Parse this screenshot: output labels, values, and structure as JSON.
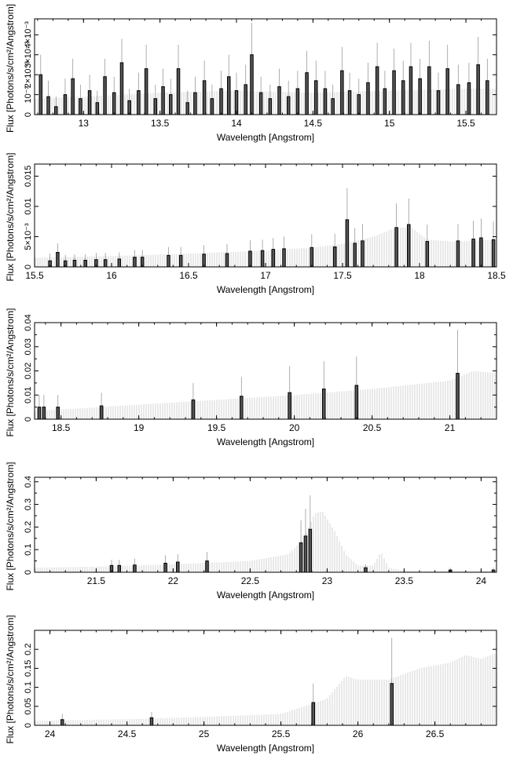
{
  "chart_data": [
    {
      "type": "bar",
      "xlabel": "Wavelength [Angstrom]",
      "ylabel": "Flux [Photons/s/cm²/Angstrom]",
      "xlim": [
        12.68,
        15.7
      ],
      "ylim": [
        0,
        0.0048
      ],
      "xticks": [
        13,
        13.5,
        14,
        14.5,
        15,
        15.5
      ],
      "xtick_labels": [
        "13",
        "13.5",
        "14",
        "14.5",
        "15",
        "15.5"
      ],
      "yticks": [
        0,
        0.001,
        0.002,
        0.003,
        0.004
      ],
      "ytick_labels": [
        "0",
        "10⁻³",
        "2×10⁻³",
        "3×10⁻³",
        "4×10⁻³"
      ],
      "model": {
        "x": [
          12.68,
          13.0,
          13.5,
          14.0,
          14.5,
          15.0,
          15.5,
          15.7
        ],
        "y": [
          0.0008,
          0.0009,
          0.0011,
          0.0012,
          0.0011,
          0.0012,
          0.0013,
          0.0013
        ]
      },
      "data": [
        {
          "x": 12.72,
          "y": 0.002,
          "err": 0.001
        },
        {
          "x": 12.77,
          "y": 0.0009,
          "err": 0.0008
        },
        {
          "x": 12.82,
          "y": 0.0004,
          "err": 0.0005
        },
        {
          "x": 12.88,
          "y": 0.001,
          "err": 0.0008
        },
        {
          "x": 12.93,
          "y": 0.0018,
          "err": 0.001
        },
        {
          "x": 12.98,
          "y": 0.0008,
          "err": 0.0007
        },
        {
          "x": 13.04,
          "y": 0.0012,
          "err": 0.0008
        },
        {
          "x": 13.09,
          "y": 0.0006,
          "err": 0.0006
        },
        {
          "x": 13.14,
          "y": 0.0019,
          "err": 0.0009
        },
        {
          "x": 13.2,
          "y": 0.0011,
          "err": 0.0008
        },
        {
          "x": 13.25,
          "y": 0.0026,
          "err": 0.0012
        },
        {
          "x": 13.3,
          "y": 0.0007,
          "err": 0.0006
        },
        {
          "x": 13.36,
          "y": 0.0012,
          "err": 0.0009
        },
        {
          "x": 13.41,
          "y": 0.0023,
          "err": 0.0012
        },
        {
          "x": 13.47,
          "y": 0.0008,
          "err": 0.0007
        },
        {
          "x": 13.52,
          "y": 0.0014,
          "err": 0.0009
        },
        {
          "x": 13.57,
          "y": 0.001,
          "err": 0.0008
        },
        {
          "x": 13.62,
          "y": 0.0023,
          "err": 0.0012
        },
        {
          "x": 13.68,
          "y": 0.0006,
          "err": 0.0006
        },
        {
          "x": 13.73,
          "y": 0.0011,
          "err": 0.0008
        },
        {
          "x": 13.79,
          "y": 0.0017,
          "err": 0.001
        },
        {
          "x": 13.84,
          "y": 0.0008,
          "err": 0.0007
        },
        {
          "x": 13.9,
          "y": 0.0013,
          "err": 0.0009
        },
        {
          "x": 13.95,
          "y": 0.0019,
          "err": 0.0011
        },
        {
          "x": 14.0,
          "y": 0.0012,
          "err": 0.0009
        },
        {
          "x": 14.06,
          "y": 0.0015,
          "err": 0.001
        },
        {
          "x": 14.1,
          "y": 0.003,
          "err": 0.0016
        },
        {
          "x": 14.16,
          "y": 0.0011,
          "err": 0.0008
        },
        {
          "x": 14.22,
          "y": 0.0008,
          "err": 0.0007
        },
        {
          "x": 14.28,
          "y": 0.0014,
          "err": 0.0009
        },
        {
          "x": 14.34,
          "y": 0.0009,
          "err": 0.0008
        },
        {
          "x": 14.4,
          "y": 0.0013,
          "err": 0.0009
        },
        {
          "x": 14.46,
          "y": 0.0021,
          "err": 0.0011
        },
        {
          "x": 14.52,
          "y": 0.0017,
          "err": 0.001
        },
        {
          "x": 14.58,
          "y": 0.0013,
          "err": 0.0009
        },
        {
          "x": 14.63,
          "y": 0.0008,
          "err": 0.0007
        },
        {
          "x": 14.69,
          "y": 0.0022,
          "err": 0.0012
        },
        {
          "x": 14.74,
          "y": 0.0012,
          "err": 0.0009
        },
        {
          "x": 14.8,
          "y": 0.001,
          "err": 0.0008
        },
        {
          "x": 14.86,
          "y": 0.0016,
          "err": 0.001
        },
        {
          "x": 14.92,
          "y": 0.0024,
          "err": 0.0012
        },
        {
          "x": 14.97,
          "y": 0.0013,
          "err": 0.0009
        },
        {
          "x": 15.03,
          "y": 0.0022,
          "err": 0.0011
        },
        {
          "x": 15.09,
          "y": 0.0017,
          "err": 0.001
        },
        {
          "x": 15.14,
          "y": 0.0024,
          "err": 0.0012
        },
        {
          "x": 15.2,
          "y": 0.0018,
          "err": 0.001
        },
        {
          "x": 15.26,
          "y": 0.0024,
          "err": 0.0013
        },
        {
          "x": 15.32,
          "y": 0.0012,
          "err": 0.0009
        },
        {
          "x": 15.38,
          "y": 0.0023,
          "err": 0.0012
        },
        {
          "x": 15.45,
          "y": 0.0015,
          "err": 0.001
        },
        {
          "x": 15.52,
          "y": 0.0016,
          "err": 0.001
        },
        {
          "x": 15.58,
          "y": 0.0025,
          "err": 0.0014
        },
        {
          "x": 15.64,
          "y": 0.0017,
          "err": 0.0011
        }
      ]
    },
    {
      "type": "bar",
      "xlabel": "Wavelength [Angstrom]",
      "ylabel": "Flux [Photons/s/cm²/Angstrom]",
      "xlim": [
        15.5,
        18.5
      ],
      "ylim": [
        0,
        0.017
      ],
      "xticks": [
        15.5,
        16,
        16.5,
        17,
        17.5,
        18,
        18.5
      ],
      "xtick_labels": [
        "15.5",
        "16",
        "16.5",
        "17",
        "17.5",
        "18",
        "18.5"
      ],
      "yticks": [
        0,
        0.005,
        0.01,
        0.015
      ],
      "ytick_labels": [
        "0",
        "5×10⁻³",
        "0.01",
        "0.015"
      ],
      "model": {
        "x": [
          15.5,
          16.0,
          16.5,
          17.0,
          17.3,
          17.5,
          17.7,
          17.85,
          17.95,
          18.05,
          18.2,
          18.5
        ],
        "y": [
          0.0015,
          0.0018,
          0.0022,
          0.0027,
          0.0032,
          0.0038,
          0.005,
          0.0065,
          0.0065,
          0.0045,
          0.0042,
          0.0045
        ]
      },
      "data": [
        {
          "x": 15.6,
          "y": 0.001,
          "err": 0.0012
        },
        {
          "x": 15.65,
          "y": 0.0024,
          "err": 0.0015
        },
        {
          "x": 15.7,
          "y": 0.001,
          "err": 0.001
        },
        {
          "x": 15.76,
          "y": 0.0011,
          "err": 0.001
        },
        {
          "x": 15.83,
          "y": 0.0011,
          "err": 0.001
        },
        {
          "x": 15.9,
          "y": 0.0012,
          "err": 0.0011
        },
        {
          "x": 15.96,
          "y": 0.0012,
          "err": 0.0011
        },
        {
          "x": 16.05,
          "y": 0.0013,
          "err": 0.0011
        },
        {
          "x": 16.15,
          "y": 0.0016,
          "err": 0.0012
        },
        {
          "x": 16.2,
          "y": 0.0016,
          "err": 0.0012
        },
        {
          "x": 16.37,
          "y": 0.0019,
          "err": 0.0014
        },
        {
          "x": 16.45,
          "y": 0.0019,
          "err": 0.0014
        },
        {
          "x": 16.6,
          "y": 0.0021,
          "err": 0.0015
        },
        {
          "x": 16.75,
          "y": 0.0022,
          "err": 0.0016
        },
        {
          "x": 16.9,
          "y": 0.0026,
          "err": 0.0018
        },
        {
          "x": 16.98,
          "y": 0.0027,
          "err": 0.0018
        },
        {
          "x": 17.05,
          "y": 0.0029,
          "err": 0.0019
        },
        {
          "x": 17.12,
          "y": 0.003,
          "err": 0.002
        },
        {
          "x": 17.3,
          "y": 0.0032,
          "err": 0.0022
        },
        {
          "x": 17.45,
          "y": 0.0033,
          "err": 0.0022
        },
        {
          "x": 17.53,
          "y": 0.0078,
          "err": 0.0052
        },
        {
          "x": 17.58,
          "y": 0.0039,
          "err": 0.0025
        },
        {
          "x": 17.63,
          "y": 0.0043,
          "err": 0.0028
        },
        {
          "x": 17.85,
          "y": 0.0065,
          "err": 0.004
        },
        {
          "x": 17.93,
          "y": 0.007,
          "err": 0.0043
        },
        {
          "x": 18.05,
          "y": 0.0042,
          "err": 0.0028
        },
        {
          "x": 18.25,
          "y": 0.0043,
          "err": 0.0028
        },
        {
          "x": 18.35,
          "y": 0.0046,
          "err": 0.003
        },
        {
          "x": 18.4,
          "y": 0.0048,
          "err": 0.0032
        },
        {
          "x": 18.48,
          "y": 0.0045,
          "err": 0.003
        }
      ]
    },
    {
      "type": "bar",
      "xlabel": "Wavelength [Angstrom]",
      "ylabel": "Flux [Photons/s/cm²/Angstrom]",
      "xlim": [
        18.33,
        21.3
      ],
      "ylim": [
        0,
        0.04
      ],
      "xticks": [
        18.5,
        19,
        19.5,
        20,
        20.5,
        21
      ],
      "xtick_labels": [
        "18.5",
        "19",
        "19.5",
        "20",
        "20.5",
        "21"
      ],
      "yticks": [
        0,
        0.005,
        0.01,
        0.015,
        0.02,
        0.025,
        0.03,
        0.035,
        0.04
      ],
      "ytick_labels": [
        "0",
        "",
        "0.01",
        "",
        "0.02",
        "",
        "0.03",
        "",
        "0.04"
      ],
      "model": {
        "x": [
          18.33,
          18.5,
          19.0,
          19.5,
          20.0,
          20.5,
          21.0,
          21.15,
          21.3
        ],
        "y": [
          0.0035,
          0.004,
          0.006,
          0.008,
          0.01,
          0.0125,
          0.016,
          0.02,
          0.019
        ]
      },
      "data": [
        {
          "x": 18.36,
          "y": 0.005,
          "err": 0.005
        },
        {
          "x": 18.39,
          "y": 0.005,
          "err": 0.005
        },
        {
          "x": 18.48,
          "y": 0.005,
          "err": 0.005
        },
        {
          "x": 18.76,
          "y": 0.0055,
          "err": 0.0055
        },
        {
          "x": 19.35,
          "y": 0.008,
          "err": 0.007
        },
        {
          "x": 19.66,
          "y": 0.0095,
          "err": 0.008
        },
        {
          "x": 19.97,
          "y": 0.011,
          "err": 0.011
        },
        {
          "x": 20.19,
          "y": 0.0125,
          "err": 0.0115
        },
        {
          "x": 20.4,
          "y": 0.014,
          "err": 0.012
        },
        {
          "x": 21.05,
          "y": 0.019,
          "err": 0.018
        }
      ]
    },
    {
      "type": "bar",
      "xlabel": "Wavelength [Angstrom]",
      "ylabel": "Flux [Photons/s/cm²/Angstrom]",
      "xlim": [
        21.1,
        24.1
      ],
      "ylim": [
        0,
        0.42
      ],
      "xticks": [
        21.5,
        22,
        22.5,
        23,
        23.5,
        24
      ],
      "xtick_labels": [
        "21.5",
        "22",
        "22.5",
        "23",
        "23.5",
        "24"
      ],
      "yticks": [
        0,
        0.05,
        0.1,
        0.15,
        0.2,
        0.25,
        0.3,
        0.35,
        0.4
      ],
      "ytick_labels": [
        "0",
        "",
        "0.1",
        "",
        "0.2",
        "",
        "0.3",
        "",
        "0.4"
      ],
      "model": {
        "x": [
          21.1,
          21.5,
          22.0,
          22.5,
          22.75,
          22.85,
          22.92,
          22.97,
          23.05,
          23.12,
          23.2,
          23.3,
          23.35,
          23.4,
          23.5,
          24.0,
          24.1
        ],
        "y": [
          0.02,
          0.025,
          0.035,
          0.05,
          0.08,
          0.15,
          0.26,
          0.27,
          0.18,
          0.08,
          0.03,
          0.03,
          0.09,
          0.02,
          0.005,
          0.005,
          0.005
        ]
      },
      "data": [
        {
          "x": 21.6,
          "y": 0.03,
          "err": 0.025
        },
        {
          "x": 21.65,
          "y": 0.03,
          "err": 0.025
        },
        {
          "x": 21.75,
          "y": 0.032,
          "err": 0.028
        },
        {
          "x": 21.95,
          "y": 0.04,
          "err": 0.035
        },
        {
          "x": 22.03,
          "y": 0.045,
          "err": 0.035
        },
        {
          "x": 22.22,
          "y": 0.05,
          "err": 0.04
        },
        {
          "x": 22.83,
          "y": 0.13,
          "err": 0.1
        },
        {
          "x": 22.86,
          "y": 0.16,
          "err": 0.12
        },
        {
          "x": 22.89,
          "y": 0.19,
          "err": 0.15
        },
        {
          "x": 23.25,
          "y": 0.02,
          "err": 0.015
        },
        {
          "x": 23.8,
          "y": 0.01,
          "err": 0.01
        },
        {
          "x": 24.08,
          "y": 0.01,
          "err": 0.01
        }
      ]
    },
    {
      "type": "bar",
      "xlabel": "Wavelength [Angstrom]",
      "ylabel": "Flux [Photons/s/cm²/Angstrom]",
      "xlim": [
        23.9,
        26.9
      ],
      "ylim": [
        0,
        0.25
      ],
      "xticks": [
        24,
        24.5,
        25,
        25.5,
        26,
        26.5
      ],
      "xtick_labels": [
        "24",
        "24.5",
        "25",
        "25.5",
        "26",
        "26.5"
      ],
      "yticks": [
        0,
        0.05,
        0.1,
        0.15,
        0.2
      ],
      "ytick_labels": [
        "0",
        "0.05",
        "0.1",
        "0.15",
        "0.2"
      ],
      "model": {
        "x": [
          23.9,
          24.5,
          25.0,
          25.5,
          25.8,
          25.92,
          26.0,
          26.2,
          26.4,
          26.6,
          26.7,
          26.8,
          26.9
        ],
        "y": [
          0.012,
          0.016,
          0.022,
          0.03,
          0.07,
          0.13,
          0.12,
          0.12,
          0.15,
          0.165,
          0.185,
          0.175,
          0.19
        ]
      },
      "data": [
        {
          "x": 24.08,
          "y": 0.015,
          "err": 0.015
        },
        {
          "x": 24.66,
          "y": 0.02,
          "err": 0.015
        },
        {
          "x": 25.71,
          "y": 0.06,
          "err": 0.05
        },
        {
          "x": 26.22,
          "y": 0.11,
          "err": 0.12
        }
      ]
    }
  ]
}
